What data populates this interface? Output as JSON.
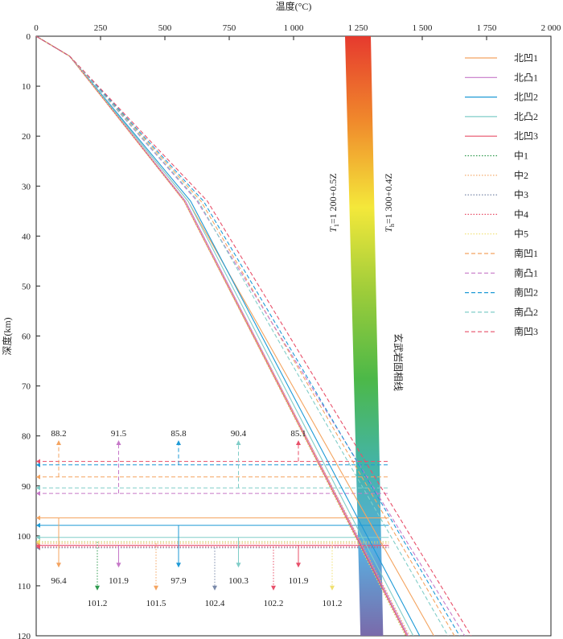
{
  "chart_data": {
    "type": "line",
    "xlabel": "温度(°C)",
    "ylabel": "深度(km)",
    "xlim": [
      0,
      2000
    ],
    "ylim": [
      0,
      120
    ],
    "x_axis_position": "top",
    "y_inverted": true,
    "xticks": [
      0,
      250,
      500,
      750,
      1000,
      1250,
      1500,
      1750,
      2000
    ],
    "xtick_labels": [
      "0",
      "250",
      "500",
      "750",
      "1 000",
      "1 250",
      "1 500",
      "1 750",
      "2 000"
    ],
    "yticks": [
      0,
      10,
      20,
      30,
      40,
      50,
      60,
      70,
      80,
      90,
      100,
      110,
      120
    ],
    "ytick_labels": [
      "0",
      "10",
      "20",
      "30",
      "40",
      "50",
      "60",
      "70",
      "80",
      "90",
      "100",
      "110",
      "120"
    ],
    "legend_position": "top-right",
    "series": [
      {
        "name": "北凹1",
        "color": "#f4a460",
        "dash": "solid",
        "x": [
          0,
          130,
          590,
          1545
        ],
        "y": [
          0,
          4,
          33,
          120
        ],
        "lab_depth": 96.4,
        "lab_label": "96.4",
        "arrow": "down",
        "label_row": 1
      },
      {
        "name": "北凸1",
        "color": "#c678c8",
        "dash": "solid",
        "x": [
          0,
          130,
          580,
          1445
        ],
        "y": [
          0,
          4,
          33,
          120
        ],
        "lab_depth": 101.9,
        "lab_label": "101.9",
        "arrow": "down",
        "label_row": 1
      },
      {
        "name": "北凹2",
        "color": "#1e9ad6",
        "dash": "solid",
        "x": [
          0,
          130,
          600,
          1490
        ],
        "y": [
          0,
          4,
          33,
          120
        ],
        "lab_depth": 97.9,
        "lab_label": "97.9",
        "arrow": "down",
        "label_row": 1
      },
      {
        "name": "北凸2",
        "color": "#80cdc8",
        "dash": "solid",
        "x": [
          0,
          130,
          590,
          1465
        ],
        "y": [
          0,
          4,
          33,
          120
        ],
        "lab_depth": 100.3,
        "lab_label": "100.3",
        "arrow": "down",
        "label_row": 1
      },
      {
        "name": "北凹3",
        "color": "#e8506a",
        "dash": "solid",
        "x": [
          0,
          130,
          575,
          1440
        ],
        "y": [
          0,
          4,
          33,
          120
        ],
        "lab_depth": 101.9,
        "lab_label": "101.9",
        "arrow": "down",
        "label_row": 1
      },
      {
        "name": "中1",
        "color": "#2e9a4e",
        "dash": "dotted",
        "x": [
          0,
          130,
          575,
          1435
        ],
        "y": [
          0,
          4,
          33,
          120
        ],
        "lab_depth": 101.2,
        "lab_label": "101.2",
        "arrow": "down",
        "label_row": 2
      },
      {
        "name": "中2",
        "color": "#f4a460",
        "dash": "dotted",
        "x": [
          0,
          130,
          575,
          1450
        ],
        "y": [
          0,
          4,
          33,
          120
        ],
        "lab_depth": 101.5,
        "lab_label": "101.5",
        "arrow": "down",
        "label_row": 2
      },
      {
        "name": "中3",
        "color": "#7a8aaa",
        "dash": "dotted",
        "x": [
          0,
          130,
          575,
          1440
        ],
        "y": [
          0,
          4,
          33,
          120
        ],
        "lab_depth": 102.4,
        "lab_label": "102.4",
        "arrow": "down",
        "label_row": 2
      },
      {
        "name": "中4",
        "color": "#e8506a",
        "dash": "dotted",
        "x": [
          0,
          130,
          575,
          1440
        ],
        "y": [
          0,
          4,
          33,
          120
        ],
        "lab_depth": 102.2,
        "lab_label": "102.2",
        "arrow": "down",
        "label_row": 2
      },
      {
        "name": "中5",
        "color": "#f0e070",
        "dash": "dotted",
        "x": [
          0,
          130,
          575,
          1435
        ],
        "y": [
          0,
          4,
          33,
          120
        ],
        "lab_depth": 101.2,
        "lab_label": "101.2",
        "arrow": "down",
        "label_row": 2
      },
      {
        "name": "南凹1",
        "color": "#f4a460",
        "dash": "dashed",
        "x": [
          0,
          130,
          640,
          1625
        ],
        "y": [
          0,
          4,
          33,
          120
        ],
        "lab_depth": 88.2,
        "lab_label": "88.2",
        "arrow": "up",
        "label_row": 0
      },
      {
        "name": "南凸1",
        "color": "#c678c8",
        "dash": "dashed",
        "x": [
          0,
          130,
          625,
          1665
        ],
        "y": [
          0,
          4,
          33,
          120
        ],
        "lab_depth": 91.5,
        "lab_label": "91.5",
        "arrow": "up",
        "label_row": 0
      },
      {
        "name": "南凹2",
        "color": "#1e9ad6",
        "dash": "dashed",
        "x": [
          0,
          130,
          650,
          1645
        ],
        "y": [
          0,
          4,
          33,
          120
        ],
        "lab_depth": 85.8,
        "lab_label": "85.8",
        "arrow": "up",
        "label_row": 0
      },
      {
        "name": "南凸2",
        "color": "#80cdc8",
        "dash": "dashed",
        "x": [
          0,
          130,
          630,
          1600
        ],
        "y": [
          0,
          4,
          33,
          120
        ],
        "lab_depth": 90.4,
        "lab_label": "90.4",
        "arrow": "up",
        "label_row": 0
      },
      {
        "name": "南凹3",
        "color": "#e8506a",
        "dash": "dashed",
        "x": [
          0,
          130,
          665,
          1690
        ],
        "y": [
          0,
          4,
          33,
          120
        ],
        "lab_depth": 85.1,
        "lab_label": "85.1",
        "arrow": "up",
        "label_row": 0
      }
    ],
    "solidus_band": {
      "label": "玄武岩固相线",
      "colors_top_to_bottom": [
        "#e63a2e",
        "#f08a2c",
        "#f4e83a",
        "#9ccc3a",
        "#4cb848",
        "#44b4a8",
        "#5aaee0",
        "#7a6aaa"
      ],
      "lower": {
        "x0": 1200,
        "slope": 0.5
      },
      "upper": {
        "x0": 1300,
        "slope": 0.4
      },
      "lower_label": {
        "var": "T",
        "sub": "1",
        "eq": "=1 200+0.5Z"
      },
      "upper_label": {
        "var": "T",
        "sub": "h",
        "eq": "=1 300+0.4Z"
      }
    }
  }
}
